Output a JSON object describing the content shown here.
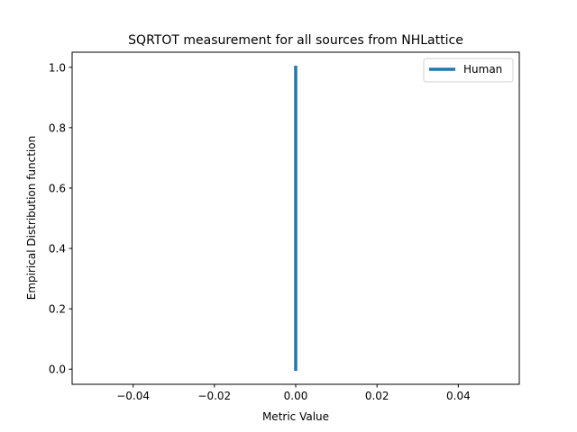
{
  "chart_data": {
    "type": "line",
    "title": "SQRTOT measurement for all sources from NHLattice",
    "xlabel": "Metric Value",
    "ylabel": "Empirical Distribution function",
    "xlim": [
      -0.055,
      0.055
    ],
    "ylim": [
      -0.05,
      1.05
    ],
    "xticks": [
      -0.04,
      -0.02,
      0.0,
      0.02,
      0.04
    ],
    "xtick_labels": [
      "−0.04",
      "−0.02",
      "0.00",
      "0.02",
      "0.04"
    ],
    "yticks": [
      0.0,
      0.2,
      0.4,
      0.6,
      0.8,
      1.0
    ],
    "ytick_labels": [
      "0.0",
      "0.2",
      "0.4",
      "0.6",
      "0.8",
      "1.0"
    ],
    "grid": false,
    "legend_position": "top-right",
    "series": [
      {
        "name": "Human",
        "color": "#1f77b4",
        "x": [
          0.0,
          0.0
        ],
        "y": [
          0.0,
          1.0
        ]
      }
    ]
  }
}
